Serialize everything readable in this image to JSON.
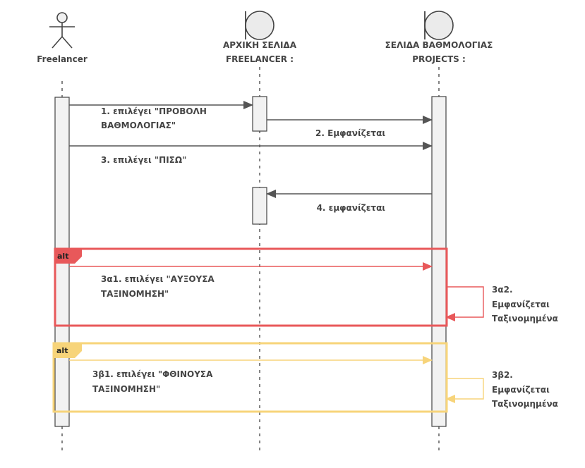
{
  "participants": {
    "freelancer": {
      "label": "Freelancer",
      "icon": "actor-icon"
    },
    "home": {
      "label_line1": "ΑΡΧΙΚΗ ΣΕΛΙΔΑ",
      "label_line2": "FREELANCER :",
      "icon": "boundary-icon"
    },
    "rating": {
      "label_line1": "ΣΕΛΙΔΑ ΒΑΘΜΟΛΟΓΙΑΣ",
      "label_line2": "PROJECTS :",
      "icon": "boundary-icon"
    }
  },
  "messages": {
    "m1": {
      "line1": "1. επιλέγει \"ΠΡΟΒΟΛΗ",
      "line2": "ΒΑΘΜΟΛΟΓΙΑΣ\""
    },
    "m2": {
      "text": "2. Εμφανίζεται"
    },
    "m3": {
      "text": "3. επιλέγει \"ΠΙΣΩ\""
    },
    "m4": {
      "text": "4. εμφανίζεται"
    }
  },
  "fragments": {
    "alt_red": {
      "tag": "alt",
      "color": "#e8585a",
      "msg_line1": "3α1. επιλέγει \"ΑΥΞΟΥΣΑ",
      "msg_line2": "ΤΑΞΙΝΟΜΗΣΗ\"",
      "self_line1": "3α2.",
      "self_line2": "Εμφανίζεται",
      "self_line3": "Ταξινομημένα"
    },
    "alt_yellow": {
      "tag": "alt",
      "color": "#f7d47a",
      "msg_line1": "3β1. επιλέγει \"ΦΘΙΝΟΥΣΑ",
      "msg_line2": "ΤΑΞΙΝΟΜΗΣΗ\"",
      "self_line1": "3β2.",
      "self_line2": "Εμφανίζεται",
      "self_line3": "Ταξινομημένα"
    }
  }
}
